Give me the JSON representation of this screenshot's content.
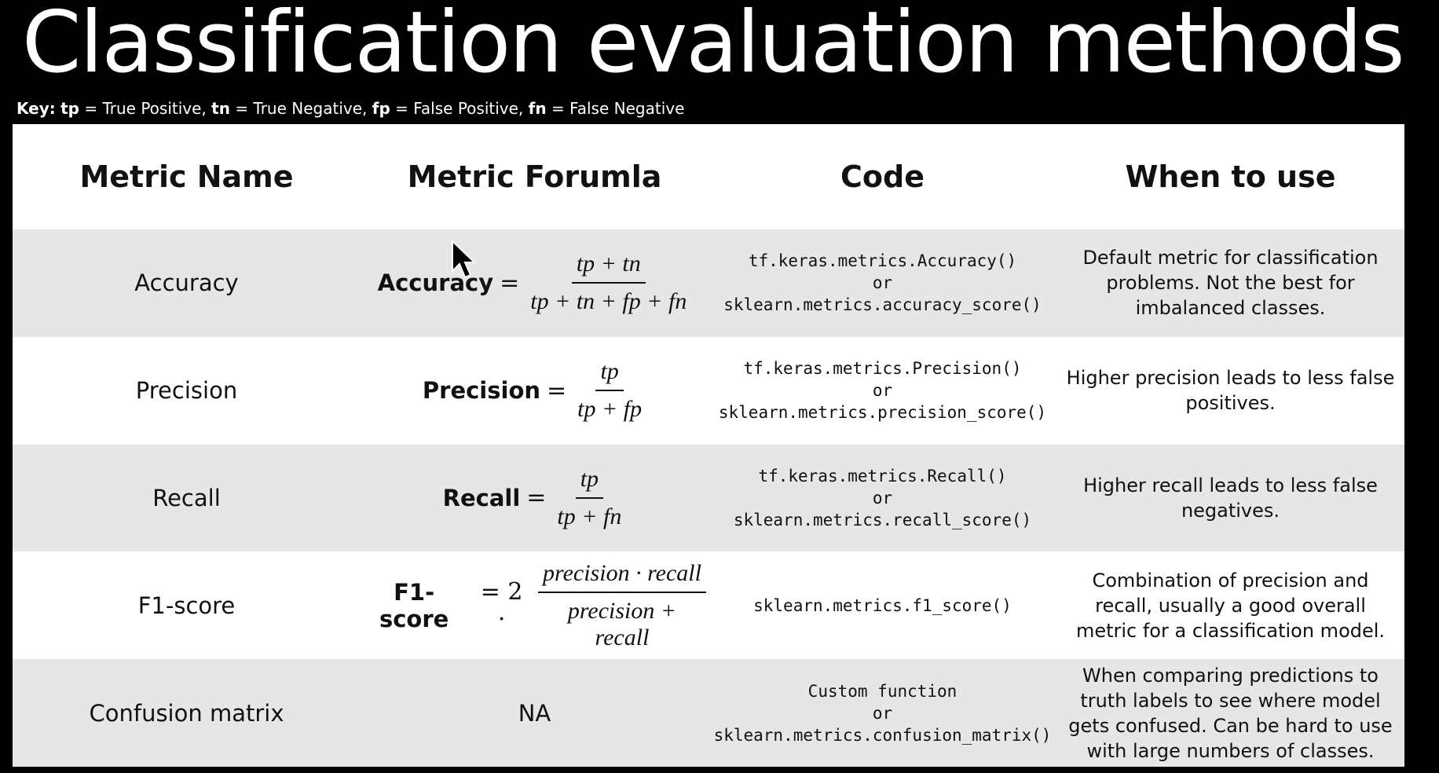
{
  "header": {
    "title": "Classification evaluation methods",
    "key": {
      "label": "Key:",
      "items": [
        {
          "abbr": "tp",
          "text": "= True Positive,"
        },
        {
          "abbr": "tn",
          "text": "= True Negative,"
        },
        {
          "abbr": "fp",
          "text": "= False Positive,"
        },
        {
          "abbr": "fn",
          "text": "= False Negative"
        }
      ]
    }
  },
  "table": {
    "columns": [
      "Metric Name",
      "Metric Forumla",
      "Code",
      "When to use"
    ],
    "rows": [
      {
        "name": "Accuracy",
        "formula": {
          "lhs": "Accuracy",
          "op": "=",
          "numerator": "tp + tn",
          "denominator": "tp + tn + fp + fn"
        },
        "code": [
          "tf.keras.metrics.Accuracy()",
          "or",
          "sklearn.metrics.accuracy_score()"
        ],
        "use": "Default metric for classification problems. Not the best for imbalanced classes."
      },
      {
        "name": "Precision",
        "formula": {
          "lhs": "Precision",
          "op": "=",
          "numerator": "tp",
          "denominator": "tp + fp"
        },
        "code": [
          "tf.keras.metrics.Precision()",
          "or",
          "sklearn.metrics.precision_score()"
        ],
        "use": "Higher precision leads to less false positives."
      },
      {
        "name": "Recall",
        "formula": {
          "lhs": "Recall",
          "op": "=",
          "numerator": "tp",
          "denominator": "tp + fn"
        },
        "code": [
          "tf.keras.metrics.Recall()",
          "or",
          "sklearn.metrics.recall_score()"
        ],
        "use": "Higher recall leads to less false negatives."
      },
      {
        "name": "F1-score",
        "formula": {
          "lhs": "F1-score",
          "op": "= 2 ·",
          "numerator": "precision · recall",
          "denominator": "precision + recall"
        },
        "code": [
          "sklearn.metrics.f1_score()"
        ],
        "use": "Combination of precision and recall, usually a good overall metric for a classification model."
      },
      {
        "name": "Confusion matrix",
        "formula": "NA",
        "code": [
          "Custom function",
          "or",
          "sklearn.metrics.confusion_matrix()"
        ],
        "use": "When comparing predictions to truth labels to see where model gets confused. Can be hard to use with large numbers of classes."
      }
    ]
  }
}
